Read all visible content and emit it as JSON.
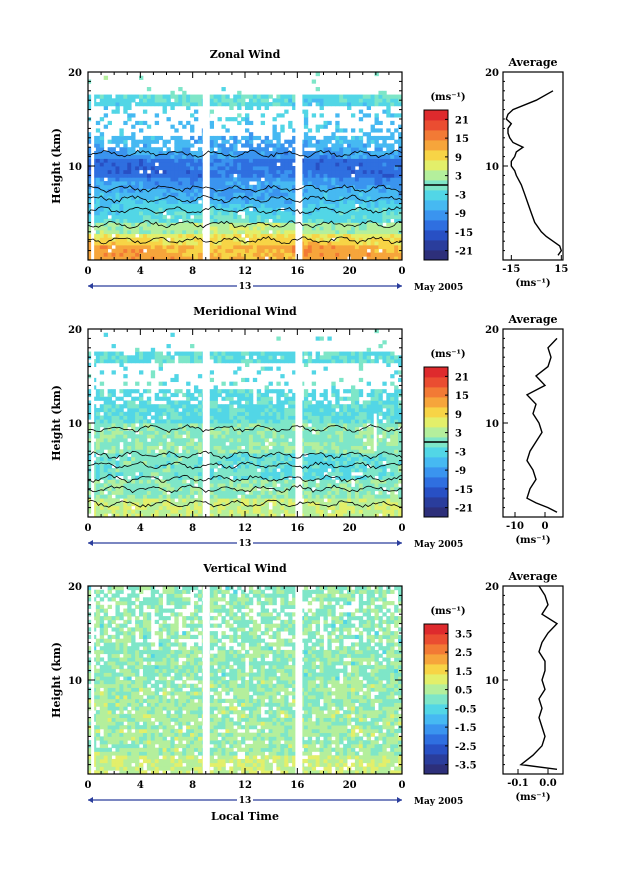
{
  "colors": {
    "scale": [
      "#2d2f7a",
      "#2a3d9c",
      "#2850c4",
      "#2f6fe0",
      "#3a94ef",
      "#46b9f2",
      "#52d6e6",
      "#7ee6c8",
      "#b4ef9c",
      "#e3ef6a",
      "#f7d446",
      "#f6a53b",
      "#f27a35",
      "#ea4d31",
      "#de2a2d"
    ],
    "contour": "#000000",
    "gap": "#ffffff"
  },
  "shared": {
    "month_label": "May 2005",
    "x_ticks": [
      "0",
      "4",
      "8",
      "12",
      "16",
      "20",
      "0"
    ],
    "day_label": "13",
    "x_axis_label": "Local Time",
    "y_axis_label": "Height (km)",
    "y_ticks": [
      "10",
      "20"
    ],
    "unit_label": "(ms⁻¹)",
    "average_title": "Average"
  },
  "chart_data": [
    {
      "type": "heatmap",
      "title": "Zonal Wind",
      "ylabel": "Height (km)",
      "xlabel": "",
      "x_ticks": [
        "0",
        "4",
        "8",
        "12",
        "16",
        "20",
        "0"
      ],
      "ylim": [
        0,
        20
      ],
      "colorbar_ticks": [
        "21",
        "15",
        "9",
        "3",
        "-3",
        "-9",
        "-15",
        "-21"
      ],
      "colorbar_range": [
        -24,
        24
      ],
      "average_profile": {
        "title": "Average",
        "x_ticks": [
          "-15",
          "15"
        ],
        "xlim": [
          -20,
          16
        ],
        "unit": "(ms⁻¹)",
        "heights": [
          0.5,
          1,
          1.5,
          2,
          2.5,
          3,
          4,
          5,
          6,
          7,
          8,
          9,
          9.5,
          10,
          10.5,
          11,
          11.5,
          12,
          12.5,
          13,
          13.5,
          14,
          14.5,
          15,
          15.5,
          16,
          17,
          18
        ],
        "values": [
          13,
          15,
          14,
          10,
          6,
          3,
          -1,
          -3,
          -5,
          -7,
          -9,
          -12,
          -13,
          -15,
          -15,
          -13,
          -12,
          -8,
          -14,
          -16,
          -17,
          -17,
          -15,
          -18,
          -17,
          -14,
          0,
          10
        ]
      }
    },
    {
      "type": "heatmap",
      "title": "Meridional Wind",
      "ylabel": "Height (km)",
      "xlabel": "",
      "x_ticks": [
        "0",
        "4",
        "8",
        "12",
        "16",
        "20",
        "0"
      ],
      "ylim": [
        0,
        20
      ],
      "colorbar_ticks": [
        "21",
        "15",
        "9",
        "3",
        "-3",
        "-9",
        "-15",
        "-21"
      ],
      "colorbar_range": [
        -24,
        24
      ],
      "average_profile": {
        "title": "Average",
        "x_ticks": [
          "-10",
          "0"
        ],
        "xlim": [
          -14,
          6
        ],
        "unit": "(ms⁻¹)",
        "heights": [
          0.5,
          1,
          1.5,
          2,
          3,
          4,
          5,
          6,
          7,
          8,
          9,
          10,
          11,
          12,
          13,
          14,
          15,
          16,
          17,
          18,
          19
        ],
        "values": [
          4,
          1,
          -3,
          -6,
          -5,
          -3,
          -4,
          -6,
          -5,
          -3,
          -1,
          -2,
          -4,
          -3,
          -6,
          0,
          -3,
          1,
          2,
          1,
          4
        ]
      }
    },
    {
      "type": "heatmap",
      "title": "Vertical Wind",
      "ylabel": "Height (km)",
      "xlabel": "Local Time",
      "x_ticks": [
        "0",
        "4",
        "8",
        "12",
        "16",
        "20",
        "0"
      ],
      "ylim": [
        0,
        20
      ],
      "colorbar_ticks": [
        "3.5",
        "2.5",
        "1.5",
        "0.5",
        "-0.5",
        "-1.5",
        "-2.5",
        "-3.5"
      ],
      "colorbar_range": [
        -4,
        4
      ],
      "average_profile": {
        "title": "Average",
        "x_ticks": [
          "-0.1",
          "0.0"
        ],
        "xlim": [
          -0.15,
          0.05
        ],
        "unit": "(ms⁻¹)",
        "heights": [
          0.5,
          1,
          2,
          3,
          4,
          5,
          6,
          7,
          8,
          9,
          10,
          11,
          12,
          13,
          14,
          15,
          16,
          17,
          18,
          19,
          20
        ],
        "values": [
          0.03,
          -0.09,
          -0.05,
          -0.02,
          -0.01,
          -0.02,
          -0.03,
          -0.02,
          -0.03,
          -0.01,
          -0.02,
          -0.01,
          -0.01,
          -0.03,
          -0.02,
          0.0,
          0.03,
          -0.02,
          0.0,
          -0.01,
          -0.03
        ]
      }
    }
  ]
}
